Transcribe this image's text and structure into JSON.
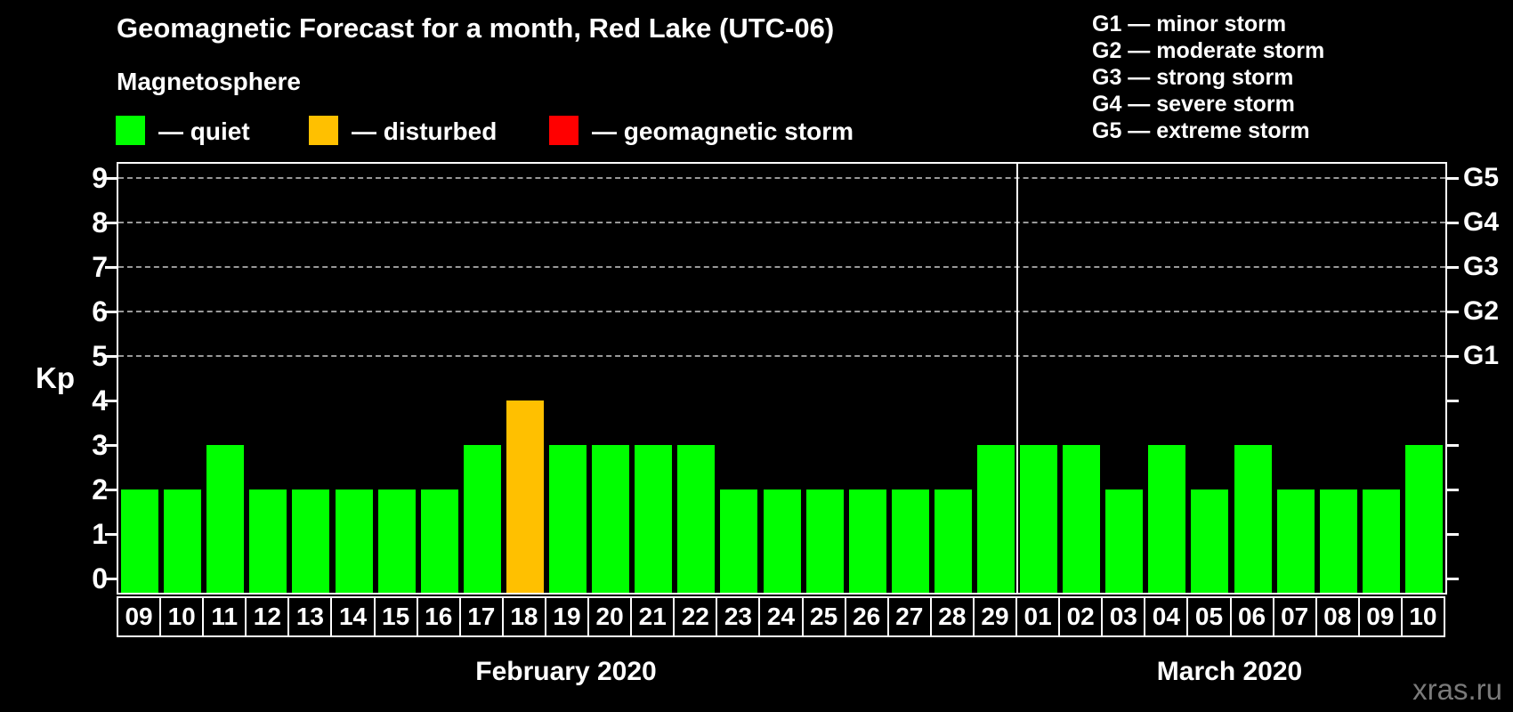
{
  "header": {
    "title": "Geomagnetic Forecast for a month, Red Lake (UTC-06)",
    "subtitle": "Magnetosphere"
  },
  "legend": {
    "items": [
      {
        "label": "— quiet",
        "status": "quiet"
      },
      {
        "label": "— disturbed",
        "status": "disturbed"
      },
      {
        "label": "— geomagnetic storm",
        "status": "storm"
      }
    ]
  },
  "g_legend": {
    "items": [
      "G1 — minor storm",
      "G2 — moderate storm",
      "G3 — strong storm",
      "G4 — severe storm",
      "G5 — extreme storm"
    ]
  },
  "colors": {
    "quiet": "#00ff00",
    "disturbed": "#ffc000",
    "storm": "#ff0000",
    "background": "#000000",
    "grid": "#999999",
    "axis": "#ffffff",
    "watermark": "#7a7a7a"
  },
  "chart_data": {
    "type": "bar",
    "title": "Geomagnetic Forecast for a month, Red Lake (UTC-06)",
    "ylabel": "Kp",
    "ylim": [
      0,
      9
    ],
    "y_ticks": [
      0,
      1,
      2,
      3,
      4,
      5,
      6,
      7,
      8,
      9
    ],
    "gridlines_at": [
      5,
      6,
      7,
      8,
      9
    ],
    "grid": true,
    "right_axis_labels": [
      {
        "kp": 5,
        "label": "G1"
      },
      {
        "kp": 6,
        "label": "G2"
      },
      {
        "kp": 7,
        "label": "G3"
      },
      {
        "kp": 8,
        "label": "G4"
      },
      {
        "kp": 9,
        "label": "G5"
      }
    ],
    "months": [
      {
        "label": "February 2020",
        "days": [
          {
            "day": "09",
            "kp": 2,
            "status": "quiet"
          },
          {
            "day": "10",
            "kp": 2,
            "status": "quiet"
          },
          {
            "day": "11",
            "kp": 3,
            "status": "quiet"
          },
          {
            "day": "12",
            "kp": 2,
            "status": "quiet"
          },
          {
            "day": "13",
            "kp": 2,
            "status": "quiet"
          },
          {
            "day": "14",
            "kp": 2,
            "status": "quiet"
          },
          {
            "day": "15",
            "kp": 2,
            "status": "quiet"
          },
          {
            "day": "16",
            "kp": 2,
            "status": "quiet"
          },
          {
            "day": "17",
            "kp": 3,
            "status": "quiet"
          },
          {
            "day": "18",
            "kp": 4,
            "status": "disturbed"
          },
          {
            "day": "19",
            "kp": 3,
            "status": "quiet"
          },
          {
            "day": "20",
            "kp": 3,
            "status": "quiet"
          },
          {
            "day": "21",
            "kp": 3,
            "status": "quiet"
          },
          {
            "day": "22",
            "kp": 3,
            "status": "quiet"
          },
          {
            "day": "23",
            "kp": 2,
            "status": "quiet"
          },
          {
            "day": "24",
            "kp": 2,
            "status": "quiet"
          },
          {
            "day": "25",
            "kp": 2,
            "status": "quiet"
          },
          {
            "day": "26",
            "kp": 2,
            "status": "quiet"
          },
          {
            "day": "27",
            "kp": 2,
            "status": "quiet"
          },
          {
            "day": "28",
            "kp": 2,
            "status": "quiet"
          },
          {
            "day": "29",
            "kp": 3,
            "status": "quiet"
          }
        ]
      },
      {
        "label": "March 2020",
        "days": [
          {
            "day": "01",
            "kp": 3,
            "status": "quiet"
          },
          {
            "day": "02",
            "kp": 3,
            "status": "quiet"
          },
          {
            "day": "03",
            "kp": 2,
            "status": "quiet"
          },
          {
            "day": "04",
            "kp": 3,
            "status": "quiet"
          },
          {
            "day": "05",
            "kp": 2,
            "status": "quiet"
          },
          {
            "day": "06",
            "kp": 3,
            "status": "quiet"
          },
          {
            "day": "07",
            "kp": 2,
            "status": "quiet"
          },
          {
            "day": "08",
            "kp": 2,
            "status": "quiet"
          },
          {
            "day": "09",
            "kp": 2,
            "status": "quiet"
          },
          {
            "day": "10",
            "kp": 3,
            "status": "quiet"
          }
        ]
      }
    ]
  },
  "watermark": "xras.ru"
}
